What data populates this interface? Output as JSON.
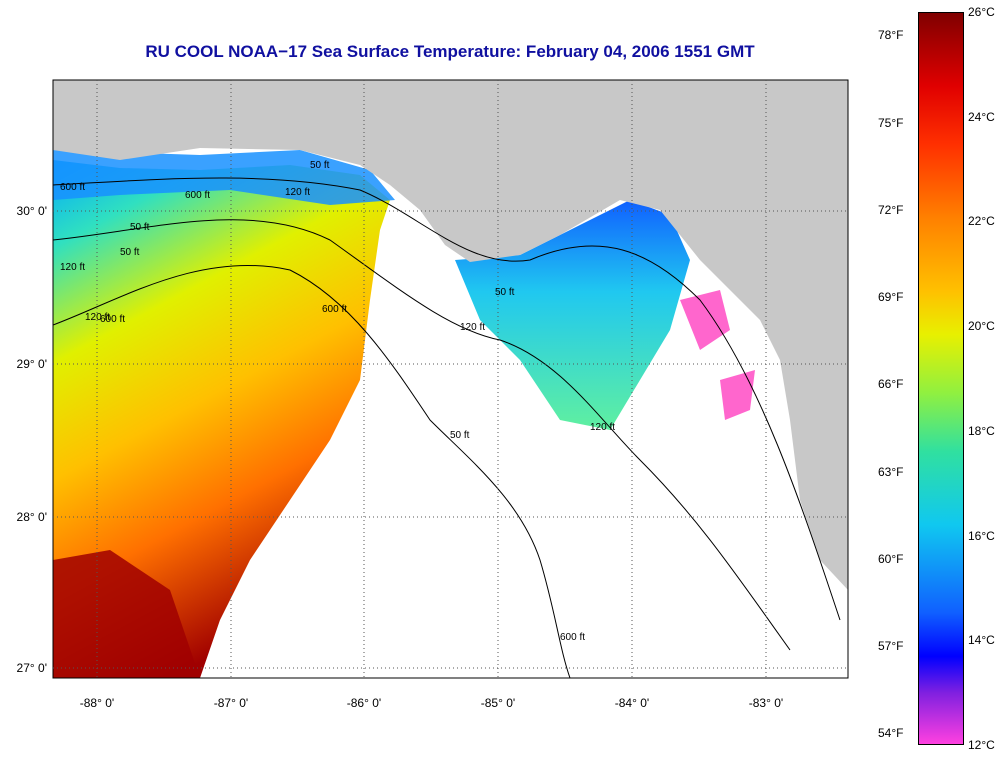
{
  "title": "RU COOL  NOAA−17  Sea Surface Temperature:  February 04, 2006 1551 GMT",
  "map": {
    "lon_ticks": [
      "-88° 0'",
      "-87° 0'",
      "-86° 0'",
      "-85° 0'",
      "-84° 0'",
      "-83° 0'"
    ],
    "lat_ticks": [
      "30° 0'",
      "29° 0'",
      "28° 0'",
      "27° 0'"
    ],
    "contour_labels": [
      "50 ft",
      "120 ft",
      "600 ft",
      "50 ft",
      "120 ft",
      "600 ft",
      "50 ft",
      "120 ft",
      "600 ft",
      "50 ft",
      "120 ft",
      "600 ft",
      "50 ft",
      "120 ft",
      "600 ft"
    ],
    "colors": {
      "land": "#c8c8c8",
      "cloud": "#ffffff"
    }
  },
  "colorbar": {
    "celsius": [
      "26°C",
      "24°C",
      "22°C",
      "20°C",
      "18°C",
      "16°C",
      "14°C",
      "12°C"
    ],
    "fahrenheit": [
      "78°F",
      "75°F",
      "72°F",
      "69°F",
      "66°F",
      "63°F",
      "60°F",
      "57°F",
      "54°F"
    ],
    "celsius_range": [
      12,
      26
    ]
  }
}
